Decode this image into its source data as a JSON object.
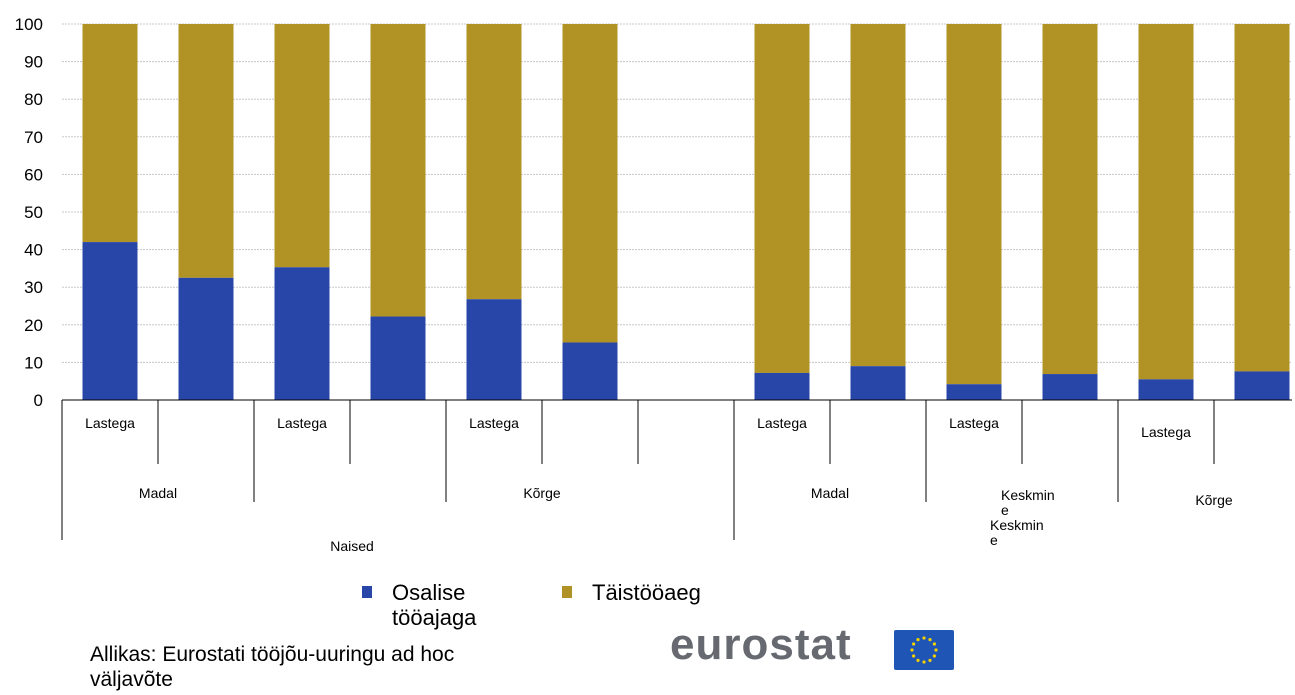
{
  "chart_data": {
    "type": "bar",
    "stacked": true,
    "ylim": [
      0,
      100
    ],
    "yticks": [
      "0",
      "10",
      "20",
      "30",
      "40",
      "50",
      "60",
      "70",
      "80",
      "90",
      "100"
    ],
    "grid": true,
    "bars": [
      {
        "label": "Lastega",
        "osalise": 42,
        "taistooaeg": 58
      },
      {
        "label": "",
        "osalise": 32.5,
        "taistooaeg": 67.5
      },
      {
        "label": "Lastega",
        "osalise": 35.3,
        "taistooaeg": 64.7
      },
      {
        "label": "",
        "osalise": 22.2,
        "taistooaeg": 77.8
      },
      {
        "label": "Lastega",
        "osalise": 26.8,
        "taistooaeg": 73.2
      },
      {
        "label": "",
        "osalise": 15.3,
        "taistooaeg": 84.7
      },
      {
        "label": "",
        "osalise": null,
        "taistooaeg": null
      },
      {
        "label": "Lastega",
        "osalise": 7.2,
        "taistooaeg": 92.8
      },
      {
        "label": "",
        "osalise": 9,
        "taistooaeg": 91
      },
      {
        "label": "Lastega",
        "osalise": 4.2,
        "taistooaeg": 95.8
      },
      {
        "label": "",
        "osalise": 6.9,
        "taistooaeg": 93.1
      },
      {
        "label": "Lastega",
        "osalise": 5.5,
        "taistooaeg": 94.5
      },
      {
        "label": "",
        "osalise": 7.6,
        "taistooaeg": 92.4
      }
    ],
    "education_labels": [
      "Madal",
      "Kõrge",
      "Madal",
      "Keskmin\ne\nKeskmin\ne",
      "Kõrge"
    ],
    "group_labels": [
      "Naised"
    ],
    "series": [
      {
        "key": "osalise",
        "name": "Osalise tööajaga",
        "color": "#2845a8"
      },
      {
        "key": "taistooaeg",
        "name": "Täistööaeg",
        "color": "#b09324"
      }
    ],
    "legend_position": "bottom"
  },
  "legend": {
    "part_time": "Osalise tööajaga",
    "full_time": "Täistööaeg"
  },
  "colors": {
    "part_time": "#2845a8",
    "full_time": "#b09324"
  },
  "source": "Allikas: Eurostati tööjõu-uuringu ad hoc väljavõte",
  "logo": {
    "text": "eurostat"
  }
}
